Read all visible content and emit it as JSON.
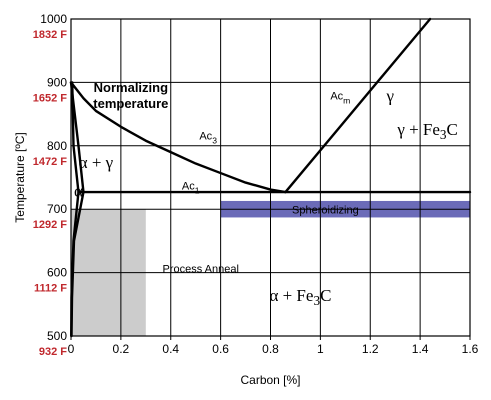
{
  "chart_data": {
    "type": "phase-diagram",
    "xlabel": "Carbon [%]",
    "ylabel": "Temperature [ºC]",
    "xlim": [
      0,
      1.6
    ],
    "ylim": [
      500,
      1000
    ],
    "x_ticks": [
      {
        "value": 0,
        "label": "0"
      },
      {
        "value": 0.2,
        "label": "0.2"
      },
      {
        "value": 0.4,
        "label": "0.4"
      },
      {
        "value": 0.6,
        "label": "0.6"
      },
      {
        "value": 0.8,
        "label": "0.8"
      },
      {
        "value": 1.0,
        "label": "1"
      },
      {
        "value": 1.2,
        "label": "1.2"
      },
      {
        "value": 1.4,
        "label": "1.4"
      },
      {
        "value": 1.6,
        "label": "1.6"
      }
    ],
    "y_ticks": [
      {
        "value": 500,
        "label": "500"
      },
      {
        "value": 600,
        "label": "600"
      },
      {
        "value": 700,
        "label": "700"
      },
      {
        "value": 800,
        "label": "800"
      },
      {
        "value": 900,
        "label": "900"
      },
      {
        "value": 1000,
        "label": "1000"
      }
    ],
    "fahrenheit_ticks": [
      {
        "value": 500,
        "label": "932 F"
      },
      {
        "value": 600,
        "label": "1112 F"
      },
      {
        "value": 700,
        "label": "1292 F"
      },
      {
        "value": 800,
        "label": "1472 F"
      },
      {
        "value": 900,
        "label": "1652 F"
      },
      {
        "value": 1000,
        "label": "1832 F"
      }
    ],
    "grid": true,
    "regions": [
      {
        "name": "Process Anneal",
        "x": [
          0,
          0.3
        ],
        "y": [
          500,
          700
        ],
        "color": "#cccccc"
      },
      {
        "name": "Spheroidizing",
        "x": [
          0.6,
          1.6
        ],
        "y": [
          687,
          713
        ],
        "color": "#6b6bb8"
      }
    ],
    "curves": [
      {
        "name": "Ac3",
        "points": [
          [
            0,
            900
          ],
          [
            0.05,
            875
          ],
          [
            0.1,
            855
          ],
          [
            0.2,
            830
          ],
          [
            0.3,
            808
          ],
          [
            0.4,
            790
          ],
          [
            0.5,
            772
          ],
          [
            0.6,
            757
          ],
          [
            0.7,
            742
          ],
          [
            0.8,
            731
          ],
          [
            0.86,
            727
          ]
        ]
      },
      {
        "name": "Acm",
        "points": [
          [
            0.86,
            727
          ],
          [
            1.44,
            1000
          ]
        ]
      },
      {
        "name": "Ac1",
        "points": [
          [
            0.03,
            727
          ],
          [
            1.6,
            727
          ]
        ]
      },
      {
        "name": "alpha-boundary-1",
        "points": [
          [
            0,
            900
          ],
          [
            0.03,
            800
          ],
          [
            0.05,
            727
          ]
        ]
      },
      {
        "name": "alpha-boundary-2",
        "points": [
          [
            0.05,
            727
          ],
          [
            0.012,
            650
          ],
          [
            0.004,
            560
          ],
          [
            0.002,
            500
          ]
        ]
      },
      {
        "name": "alpha-boundary-3",
        "points": [
          [
            0.005,
            900
          ],
          [
            0.01,
            800
          ],
          [
            0.03,
            727
          ],
          [
            0.01,
            650
          ],
          [
            0.002,
            560
          ],
          [
            0.001,
            500
          ]
        ]
      }
    ],
    "annotations": [
      {
        "id": "normalizing-1",
        "text": "Normalizing",
        "x": 0.24,
        "y": 885
      },
      {
        "id": "normalizing-2",
        "text": "temperature",
        "x": 0.24,
        "y": 860
      },
      {
        "id": "gamma",
        "text": "γ",
        "x": 1.28,
        "y": 870
      },
      {
        "id": "ac3",
        "text": "Ac3",
        "x": 0.55,
        "y": 810
      },
      {
        "id": "acm",
        "text": "Acm",
        "x": 1.08,
        "y": 873
      },
      {
        "id": "gamma-fe3c",
        "text": "γ + Fe3C",
        "x": 1.43,
        "y": 817
      },
      {
        "id": "alpha-gamma",
        "text": "α + γ",
        "x": 0.1,
        "y": 765
      },
      {
        "id": "ac1",
        "text": "Ac1",
        "x": 0.48,
        "y": 731
      },
      {
        "id": "alpha",
        "text": "α",
        "x": 0.03,
        "y": 720
      },
      {
        "id": "spheroidizing",
        "text": "Spheroidizing",
        "x": 1.02,
        "y": 693
      },
      {
        "id": "process-anneal",
        "text": "Process Anneal",
        "x": 0.52,
        "y": 600
      },
      {
        "id": "alpha-fe3c",
        "text": "α + Fe3C",
        "x": 0.92,
        "y": 555
      }
    ],
    "colors": {
      "axis": "#000000",
      "grid": "#000000",
      "fahrenheit": "#c0282d",
      "process_anneal": "#cccccc",
      "spheroidizing": "#6b6bb8"
    }
  }
}
